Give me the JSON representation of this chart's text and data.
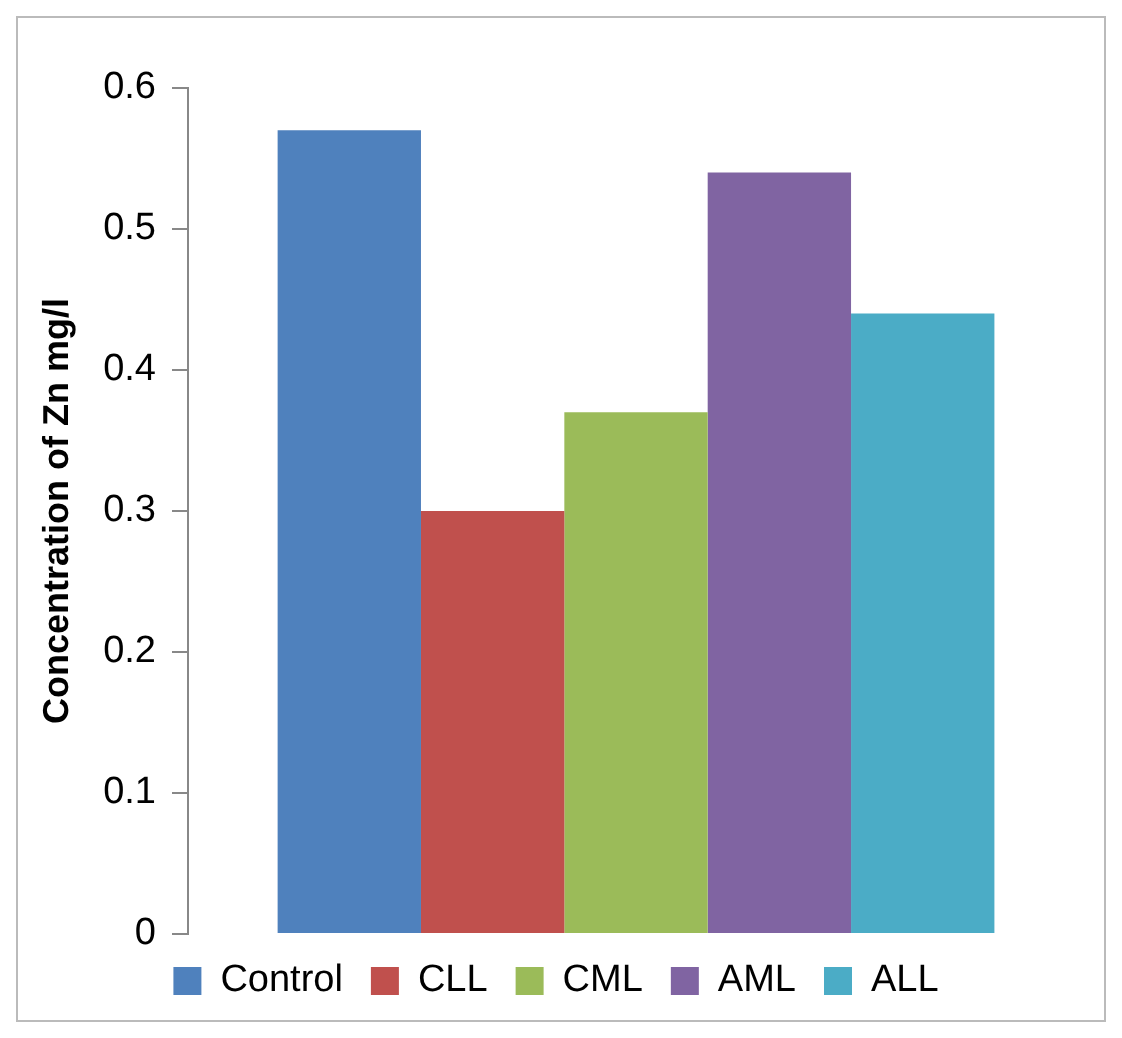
{
  "chart_data": {
    "type": "bar",
    "ylabel": "Concentration of Zn mg/l",
    "categories": [
      null
    ],
    "series": [
      {
        "name": "Control",
        "color": "#4f81bd",
        "values": [
          0.57
        ]
      },
      {
        "name": "CLL",
        "color": "#c0504d",
        "values": [
          0.3
        ]
      },
      {
        "name": "CML",
        "color": "#9bbb59",
        "values": [
          0.37
        ]
      },
      {
        "name": "AML",
        "color": "#8064a2",
        "values": [
          0.54
        ]
      },
      {
        "name": "ALL",
        "color": "#4bacc6",
        "values": [
          0.44
        ]
      }
    ],
    "ylim": [
      0,
      0.6
    ],
    "yticks": [
      0,
      0.1,
      0.2,
      0.3,
      0.4,
      0.5,
      0.6
    ],
    "grid": false,
    "legend": "bottom"
  }
}
